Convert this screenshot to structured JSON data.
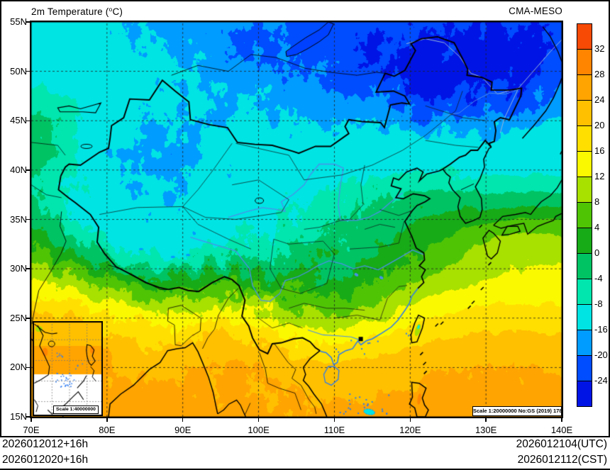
{
  "header": {
    "title_prefix": "2m Temperature (",
    "title_sup": "o",
    "title_suffix": "C)",
    "model": "CMA-MESO"
  },
  "axes": {
    "lon": [
      {
        "label": "70E",
        "deg": 70
      },
      {
        "label": "80E",
        "deg": 80
      },
      {
        "label": "90E",
        "deg": 90
      },
      {
        "label": "100E",
        "deg": 100
      },
      {
        "label": "110E",
        "deg": 110
      },
      {
        "label": "120E",
        "deg": 120
      },
      {
        "label": "130E",
        "deg": 130
      },
      {
        "label": "140E",
        "deg": 140
      }
    ],
    "lat": [
      {
        "label": "55N",
        "deg": 55
      },
      {
        "label": "50N",
        "deg": 50
      },
      {
        "label": "45N",
        "deg": 45
      },
      {
        "label": "40N",
        "deg": 40
      },
      {
        "label": "35N",
        "deg": 35
      },
      {
        "label": "30N",
        "deg": 30
      },
      {
        "label": "25N",
        "deg": 25
      },
      {
        "label": "20N",
        "deg": 20
      },
      {
        "label": "15N",
        "deg": 15
      }
    ]
  },
  "colorbar": {
    "labels_top_to_bottom": [
      "32",
      "28",
      "24",
      "20",
      "16",
      "12",
      "8",
      "4",
      "0",
      "-4",
      "-8",
      "-16",
      "-20",
      "-24"
    ],
    "thresholds_cold_to_warm": [
      -24,
      -20,
      -16,
      -8,
      -4,
      0,
      4,
      8,
      12,
      16,
      20,
      24,
      28,
      32
    ],
    "colors_cold_to_warm": [
      "#0014e6",
      "#004cff",
      "#009cff",
      "#00e4e4",
      "#00e6ae",
      "#00c364",
      "#17ab17",
      "#4fc405",
      "#a8e000",
      "#fbf900",
      "#ffdf00",
      "#ffc000",
      "#ffa400",
      "#ff8400",
      "#f64a05"
    ]
  },
  "footer": {
    "left_line1": "2026012012+16h",
    "left_line2": "2026012020+16h",
    "right_line1": "2026012104(UTC)",
    "right_line2": "2026012112(CST)"
  },
  "scale_boxes": {
    "main": "Scale 1:20000000 No:GS (2019) 1786",
    "inset": "Scale 1:40000000"
  },
  "map_lines_colors": {
    "coast_black": "#000000",
    "coast_blue": "#2b7bf0",
    "river_blue": "#4a90e8",
    "river_gray": "#9ab7d8",
    "graticule": "#222222"
  }
}
